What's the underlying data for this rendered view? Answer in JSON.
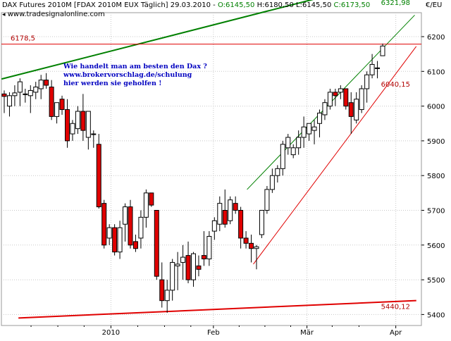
{
  "header": {
    "instrument": "DAX Futures 2010M [FDAX 2010M EUX  Täglich] 29.03.2010 - ",
    "open": "O:6145,50",
    "high": "H:6180,50",
    "low": "L:6145,50",
    "close": "C:6173,50",
    "source": "www.tradesignalonline.com",
    "currency": "€/EU"
  },
  "annotation": {
    "line1": "Wie handelt man am besten den Dax ?",
    "line2": "www.brokervorschlag.de/schulung",
    "line3": "hier werden sie geholfen !"
  },
  "levels": {
    "resistance": "6178,5",
    "top_value": "6321,98",
    "channel_low": "6040,15",
    "support": "5440,12"
  },
  "colors": {
    "up": "#ffffff",
    "down": "#e00000",
    "wick": "#000000",
    "green_line": "#008000",
    "red_line": "#e00000",
    "value_label": "#b00000",
    "annotation": "#0000c0"
  },
  "chart_data": {
    "type": "candlestick",
    "title": "DAX Futures 2010M [FDAX 2010M EUX Täglich] 29.03.2010",
    "y_ticks": [
      "6200",
      "6100",
      "6000",
      "5900",
      "5800",
      "5700",
      "5600",
      "5500",
      "5400"
    ],
    "x_ticks": [
      "2010",
      "Feb",
      "Mär",
      "Apr"
    ],
    "ylim": [
      5390,
      6290
    ],
    "grid": true,
    "candles": [
      {
        "o": 6035,
        "h": 6045,
        "l": 5980,
        "c": 6028
      },
      {
        "o": 6000,
        "h": 6040,
        "l": 5970,
        "c": 6030
      },
      {
        "o": 6030,
        "h": 6060,
        "l": 6000,
        "c": 6038
      },
      {
        "o": 6040,
        "h": 6080,
        "l": 6000,
        "c": 6070
      },
      {
        "o": 6035,
        "h": 6050,
        "l": 6010,
        "c": 6035
      },
      {
        "o": 6030,
        "h": 6060,
        "l": 5980,
        "c": 6045
      },
      {
        "o": 6040,
        "h": 6070,
        "l": 6020,
        "c": 6055
      },
      {
        "o": 6050,
        "h": 6090,
        "l": 6020,
        "c": 6075
      },
      {
        "o": 6075,
        "h": 6095,
        "l": 6050,
        "c": 6060
      },
      {
        "o": 6055,
        "h": 6075,
        "l": 5960,
        "c": 5970
      },
      {
        "o": 5970,
        "h": 6010,
        "l": 5950,
        "c": 6010
      },
      {
        "o": 6020,
        "h": 6030,
        "l": 5975,
        "c": 5990
      },
      {
        "o": 5990,
        "h": 6020,
        "l": 5880,
        "c": 5900
      },
      {
        "o": 5920,
        "h": 5960,
        "l": 5900,
        "c": 5950
      },
      {
        "o": 5935,
        "h": 6000,
        "l": 5920,
        "c": 5985
      },
      {
        "o": 5985,
        "h": 6035,
        "l": 5900,
        "c": 5930
      },
      {
        "o": 5910,
        "h": 5985,
        "l": 5875,
        "c": 5985
      },
      {
        "o": 5920,
        "h": 5930,
        "l": 5880,
        "c": 5920
      },
      {
        "o": 5890,
        "h": 5920,
        "l": 5705,
        "c": 5710
      },
      {
        "o": 5720,
        "h": 5730,
        "l": 5590,
        "c": 5600
      },
      {
        "o": 5620,
        "h": 5660,
        "l": 5600,
        "c": 5650
      },
      {
        "o": 5650,
        "h": 5660,
        "l": 5570,
        "c": 5580
      },
      {
        "o": 5580,
        "h": 5670,
        "l": 5560,
        "c": 5650
      },
      {
        "o": 5660,
        "h": 5720,
        "l": 5610,
        "c": 5710
      },
      {
        "o": 5710,
        "h": 5730,
        "l": 5590,
        "c": 5600
      },
      {
        "o": 5610,
        "h": 5630,
        "l": 5580,
        "c": 5590
      },
      {
        "o": 5620,
        "h": 5700,
        "l": 5590,
        "c": 5680
      },
      {
        "o": 5680,
        "h": 5760,
        "l": 5650,
        "c": 5750
      },
      {
        "o": 5750,
        "h": 5750,
        "l": 5710,
        "c": 5715
      },
      {
        "o": 5700,
        "h": 5700,
        "l": 5500,
        "c": 5510
      },
      {
        "o": 5500,
        "h": 5550,
        "l": 5420,
        "c": 5440
      },
      {
        "o": 5440,
        "h": 5500,
        "l": 5405,
        "c": 5470
      },
      {
        "o": 5470,
        "h": 5560,
        "l": 5440,
        "c": 5550
      },
      {
        "o": 5540,
        "h": 5580,
        "l": 5470,
        "c": 5545
      },
      {
        "o": 5550,
        "h": 5600,
        "l": 5500,
        "c": 5565
      },
      {
        "o": 5570,
        "h": 5610,
        "l": 5490,
        "c": 5500
      },
      {
        "o": 5500,
        "h": 5580,
        "l": 5480,
        "c": 5575
      },
      {
        "o": 5540,
        "h": 5570,
        "l": 5510,
        "c": 5530
      },
      {
        "o": 5570,
        "h": 5640,
        "l": 5540,
        "c": 5560
      },
      {
        "o": 5560,
        "h": 5640,
        "l": 5540,
        "c": 5625
      },
      {
        "o": 5640,
        "h": 5680,
        "l": 5615,
        "c": 5670
      },
      {
        "o": 5660,
        "h": 5740,
        "l": 5640,
        "c": 5720
      },
      {
        "o": 5700,
        "h": 5760,
        "l": 5650,
        "c": 5660
      },
      {
        "o": 5670,
        "h": 5740,
        "l": 5660,
        "c": 5730
      },
      {
        "o": 5720,
        "h": 5740,
        "l": 5690,
        "c": 5700
      },
      {
        "o": 5700,
        "h": 5710,
        "l": 5590,
        "c": 5620
      },
      {
        "o": 5620,
        "h": 5640,
        "l": 5590,
        "c": 5605
      },
      {
        "o": 5605,
        "h": 5630,
        "l": 5550,
        "c": 5590
      },
      {
        "o": 5590,
        "h": 5600,
        "l": 5530,
        "c": 5595
      },
      {
        "o": 5630,
        "h": 5700,
        "l": 5620,
        "c": 5700
      },
      {
        "o": 5700,
        "h": 5770,
        "l": 5690,
        "c": 5760
      },
      {
        "o": 5760,
        "h": 5820,
        "l": 5750,
        "c": 5800
      },
      {
        "o": 5800,
        "h": 5830,
        "l": 5780,
        "c": 5820
      },
      {
        "o": 5820,
        "h": 5900,
        "l": 5800,
        "c": 5890
      },
      {
        "o": 5880,
        "h": 5920,
        "l": 5860,
        "c": 5910
      },
      {
        "o": 5860,
        "h": 5890,
        "l": 5850,
        "c": 5880
      },
      {
        "o": 5880,
        "h": 5930,
        "l": 5860,
        "c": 5910
      },
      {
        "o": 5910,
        "h": 5970,
        "l": 5880,
        "c": 5940
      },
      {
        "o": 5920,
        "h": 5950,
        "l": 5900,
        "c": 5950
      },
      {
        "o": 5930,
        "h": 5960,
        "l": 5890,
        "c": 5940
      },
      {
        "o": 5950,
        "h": 5990,
        "l": 5910,
        "c": 5980
      },
      {
        "o": 5975,
        "h": 6020,
        "l": 5960,
        "c": 6010
      },
      {
        "o": 6000,
        "h": 6050,
        "l": 5990,
        "c": 6040
      },
      {
        "o": 6040,
        "h": 6050,
        "l": 6000,
        "c": 6030
      },
      {
        "o": 6040,
        "h": 6060,
        "l": 6020,
        "c": 6050
      },
      {
        "o": 6050,
        "h": 6050,
        "l": 5990,
        "c": 6000
      },
      {
        "o": 6010,
        "h": 6040,
        "l": 5920,
        "c": 5970
      },
      {
        "o": 5960,
        "h": 6040,
        "l": 5950,
        "c": 6020
      },
      {
        "o": 5990,
        "h": 6060,
        "l": 5980,
        "c": 6050
      },
      {
        "o": 6050,
        "h": 6100,
        "l": 6010,
        "c": 6090
      },
      {
        "o": 6090,
        "h": 6150,
        "l": 6080,
        "c": 6120
      },
      {
        "o": 6110,
        "h": 6130,
        "l": 6080,
        "c": 6110
      },
      {
        "o": 6145,
        "h": 6180,
        "l": 6145,
        "c": 6173
      }
    ]
  }
}
